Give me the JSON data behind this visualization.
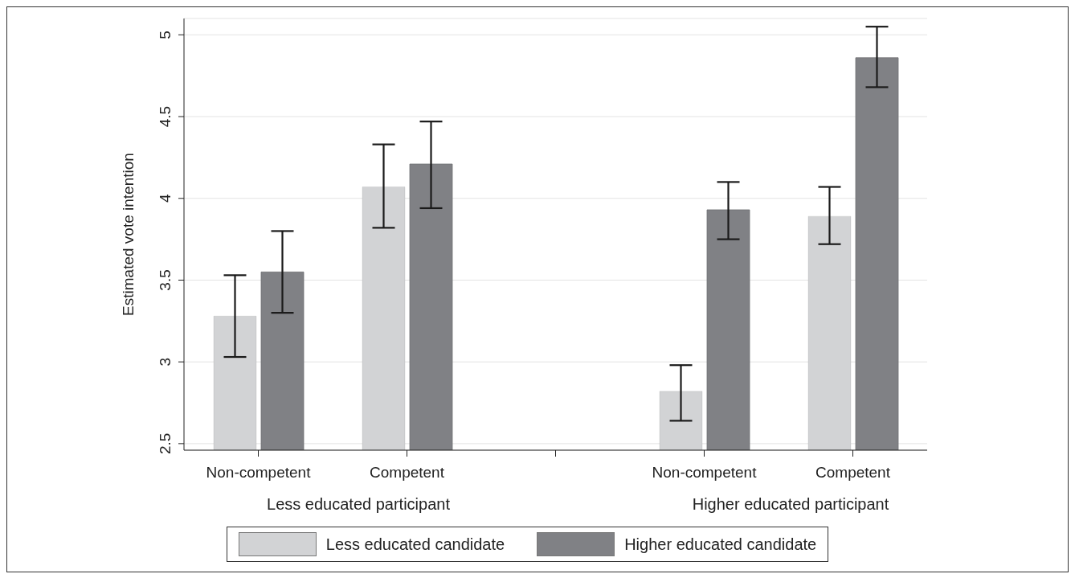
{
  "chart_data": {
    "type": "bar",
    "ylabel": "Estimated vote intention",
    "categories": [
      "Non-competent",
      "Competent",
      null,
      "Non-competent",
      "Competent"
    ],
    "series": [
      {
        "name": "Less educated candidate",
        "color": "#d2d3d5",
        "values": [
          3.28,
          4.07,
          null,
          2.82,
          3.89
        ],
        "errors": [
          [
            3.03,
            3.53
          ],
          [
            3.82,
            4.33
          ],
          null,
          [
            2.64,
            2.98
          ],
          [
            3.72,
            4.07
          ]
        ]
      },
      {
        "name": "Higher educated candidate",
        "color": "#808185",
        "values": [
          3.55,
          4.21,
          null,
          3.93,
          4.86
        ],
        "errors": [
          [
            3.3,
            3.8
          ],
          [
            3.94,
            4.47
          ],
          null,
          [
            3.75,
            4.1
          ],
          [
            4.68,
            5.05
          ]
        ]
      }
    ],
    "annotations": [
      "Less educated participant",
      "Higher educated participant"
    ],
    "ylim": [
      2.46,
      5.1
    ],
    "yticks": [
      2.5,
      3,
      3.5,
      4,
      4.5,
      5
    ],
    "grid": "y",
    "legend": "bottom"
  }
}
